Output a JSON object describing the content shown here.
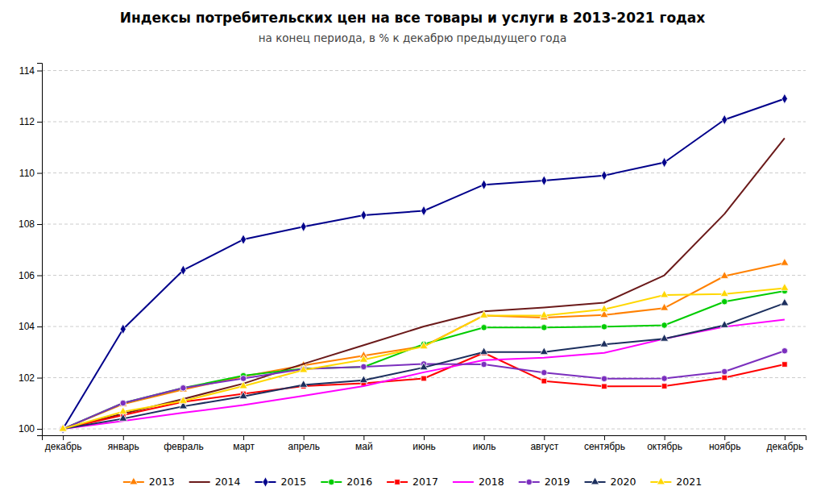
{
  "chart_data": {
    "type": "line",
    "title": "Индексы потребительских цен на все товары и услуги в 2013-2021 годах",
    "subtitle": "на конец периода, в % к декабрю предыдущего года",
    "categories": [
      "декабрь",
      "январь",
      "февраль",
      "март",
      "апрель",
      "май",
      "июнь",
      "июль",
      "август",
      "сентябрь",
      "октябрь",
      "ноябрь",
      "декабрь"
    ],
    "ylim": [
      99.75,
      114.3
    ],
    "yticks": [
      100,
      102,
      104,
      106,
      108,
      110,
      112,
      114
    ],
    "grid": true,
    "legend": "bottom",
    "series": [
      {
        "name": "2013",
        "color": "#FF8000",
        "marker": "triangle",
        "values": [
          100.0,
          100.97,
          101.54,
          102.05,
          102.48,
          102.86,
          103.23,
          104.43,
          104.35,
          104.45,
          104.72,
          105.97,
          106.48
        ]
      },
      {
        "name": "2014",
        "color": "#6B1A1A",
        "values": [
          100.0,
          100.59,
          101.17,
          101.77,
          102.54,
          103.27,
          104.0,
          104.59,
          104.74,
          104.93,
          106.0,
          108.4,
          111.36
        ]
      },
      {
        "name": "2015",
        "color": "#00008B",
        "marker": "diamond",
        "values": [
          100.0,
          103.9,
          106.2,
          107.4,
          107.9,
          108.35,
          108.52,
          109.54,
          109.7,
          109.9,
          110.41,
          112.08,
          112.9
        ]
      },
      {
        "name": "2016",
        "color": "#00CC00",
        "marker": "circle",
        "values": [
          100.0,
          101.01,
          101.6,
          102.08,
          102.36,
          102.42,
          103.31,
          103.96,
          103.96,
          103.99,
          104.05,
          104.97,
          105.39
        ]
      },
      {
        "name": "2017",
        "color": "#FF0000",
        "marker": "square",
        "values": [
          100.0,
          100.54,
          101.06,
          101.37,
          101.67,
          101.78,
          101.97,
          102.97,
          101.87,
          101.66,
          101.67,
          102.0,
          102.52
        ]
      },
      {
        "name": "2018",
        "color": "#FF00FF",
        "values": [
          100.0,
          100.31,
          100.63,
          100.93,
          101.29,
          101.67,
          102.21,
          102.69,
          102.78,
          102.97,
          103.52,
          103.99,
          104.27
        ]
      },
      {
        "name": "2019",
        "color": "#7B2FBE",
        "marker": "circle",
        "values": [
          100.0,
          101.01,
          101.6,
          101.97,
          102.34,
          102.43,
          102.54,
          102.52,
          102.2,
          101.96,
          101.97,
          102.24,
          103.05
        ]
      },
      {
        "name": "2020",
        "color": "#1C2F5E",
        "marker": "triangle",
        "values": [
          100.0,
          100.4,
          100.88,
          101.27,
          101.72,
          101.9,
          102.4,
          103.0,
          103.0,
          103.3,
          103.52,
          104.05,
          104.91
        ]
      },
      {
        "name": "2021",
        "color": "#FFD700",
        "marker": "triangle",
        "values": [
          100.0,
          100.67,
          101.09,
          101.67,
          102.3,
          102.7,
          103.22,
          104.43,
          104.43,
          104.67,
          105.23,
          105.27,
          105.5
        ]
      }
    ]
  }
}
